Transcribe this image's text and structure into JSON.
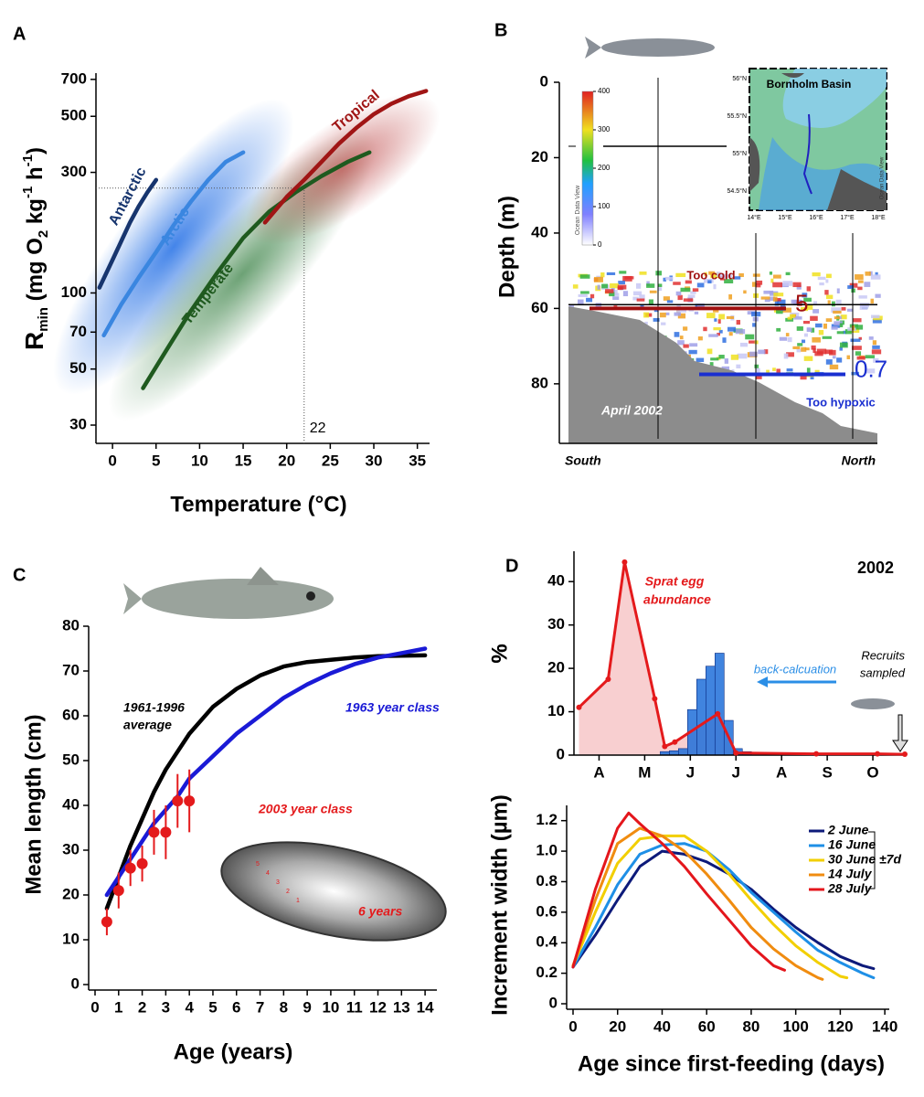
{
  "chart_data": [
    {
      "type": "line",
      "panel": "A",
      "xlabel": "Temperature (°C)",
      "ylabel": [
        "R",
        "min",
        " (mg O",
        "2",
        " kg",
        "-1",
        " h",
        "-1",
        ")"
      ],
      "log_y": true,
      "xlim": [
        -1.9,
        36.4
      ],
      "ylim": [
        25.4,
        741
      ],
      "xticks": [
        0,
        5,
        10,
        15,
        20,
        25,
        30,
        35
      ],
      "yticks": [
        30,
        50,
        70,
        100,
        300,
        500,
        700
      ],
      "series": [
        {
          "name": "Antarctic",
          "color": "#17356e",
          "x": [
            -1.5,
            0,
            1,
            2,
            3,
            4,
            5
          ],
          "values": [
            105,
            135,
            160,
            190,
            220,
            250,
            280
          ]
        },
        {
          "name": "Arctic",
          "color": "#3a86e0",
          "x": [
            -1,
            1,
            3,
            5,
            7,
            9,
            11,
            13,
            15
          ],
          "values": [
            68,
            90,
            115,
            145,
            185,
            230,
            280,
            330,
            360
          ]
        },
        {
          "name": "Temperate",
          "color": "#1f5a1f",
          "x": [
            3.5,
            6,
            9,
            12,
            15,
            18,
            21,
            24,
            27,
            29.5
          ],
          "values": [
            42,
            58,
            85,
            120,
            165,
            210,
            250,
            290,
            330,
            360
          ]
        },
        {
          "name": "Tropical",
          "color": "#a01515",
          "x": [
            17.5,
            20,
            22,
            24,
            26,
            28,
            30,
            32,
            34,
            36
          ],
          "values": [
            190,
            240,
            280,
            330,
            390,
            450,
            510,
            560,
            600,
            630
          ]
        }
      ],
      "reference": {
        "x": 22,
        "y": 260
      }
    },
    {
      "type": "echogram",
      "panel": "B",
      "ylabel": "Depth (m)",
      "ylim": [
        0,
        95.8
      ],
      "yticks": [
        0,
        20,
        40,
        60,
        80
      ],
      "left_label": "South",
      "right_label": "North",
      "date": "April 2002",
      "cold_label": "Too cold",
      "hypoxic_label": "Too hypoxic",
      "reference_depth": 59,
      "isolines": [
        {
          "value": 5,
          "depth": 60,
          "color": "#a01010"
        },
        {
          "value": 0.7,
          "depth": 77.5,
          "color": "#1a2fd0"
        }
      ],
      "colorbar": {
        "lim": [
          0,
          400
        ],
        "ticks": [
          0,
          100,
          200,
          300,
          400
        ],
        "credit": "Ocean Data View"
      },
      "inset": {
        "title": "Bornholm Basin",
        "lat_labels": [
          "56°N",
          "55.5°N",
          "55°N",
          "54.5°N"
        ],
        "lon_labels": [
          "14°E",
          "15°E",
          "16°E",
          "17°E",
          "18°E"
        ],
        "credit": "Ocean Data View"
      }
    },
    {
      "type": "line",
      "panel": "C",
      "xlabel": "Age (years)",
      "ylabel": "Mean length (cm)",
      "xlim": [
        0,
        14.5
      ],
      "ylim": [
        0,
        80
      ],
      "xticks": [
        0,
        1,
        2,
        3,
        4,
        5,
        6,
        7,
        8,
        9,
        10,
        11,
        12,
        13,
        14
      ],
      "yticks": [
        0,
        10,
        20,
        30,
        40,
        50,
        60,
        70,
        80
      ],
      "series": [
        {
          "label": [
            "1961-1996",
            "average"
          ],
          "color": "#000000",
          "x": [
            0.5,
            1,
            1.5,
            2,
            2.5,
            3,
            3.5,
            4,
            5,
            6,
            7,
            8,
            9,
            10,
            11,
            12,
            13,
            14
          ],
          "values": [
            17,
            24,
            31,
            37,
            43,
            48,
            52,
            56,
            62,
            66,
            69,
            71,
            72,
            72.5,
            73,
            73.3,
            73.4,
            73.5
          ]
        },
        {
          "label": [
            "1963 year class"
          ],
          "color": "#1a1ad6",
          "x": [
            0.5,
            1,
            1.5,
            2,
            2.5,
            3,
            3.5,
            4,
            5,
            6,
            7,
            8,
            9,
            10,
            11,
            12,
            13,
            14
          ],
          "values": [
            20,
            24,
            28,
            32,
            36,
            39,
            42,
            46,
            51,
            56,
            60,
            64,
            67,
            69.5,
            71.5,
            73,
            74,
            75
          ]
        },
        {
          "label": [
            "2003 year class"
          ],
          "color": "#e41a1c",
          "marker": "circle",
          "x": [
            0.5,
            1,
            1.5,
            2,
            2.5,
            3,
            3.5,
            4
          ],
          "values": [
            14,
            21,
            26,
            27,
            34,
            34,
            41,
            41
          ],
          "errors": [
            3,
            4,
            4,
            4,
            5,
            6,
            6,
            7
          ]
        }
      ],
      "otolith_label": "6 years",
      "otolith_rings": [
        "1",
        "2",
        "3",
        "4",
        "5"
      ]
    },
    {
      "type": "histogram",
      "panel": "D",
      "title": "2002",
      "ylabel": "%",
      "xlim": [
        0.45,
        7.7
      ],
      "ylim": [
        0,
        47
      ],
      "xticks": [
        {
          "value": 1,
          "label": "A"
        },
        {
          "value": 2,
          "label": "M"
        },
        {
          "value": 3,
          "label": "J"
        },
        {
          "value": 4,
          "label": "J"
        },
        {
          "value": 5,
          "label": "A"
        },
        {
          "value": 6,
          "label": "S"
        },
        {
          "value": 7,
          "label": "O"
        }
      ],
      "yticks": [
        0,
        10,
        20,
        30,
        40
      ],
      "bins": [
        2.34,
        2.54,
        2.74,
        2.94,
        3.14,
        3.34,
        3.54,
        3.74,
        3.94,
        4.14,
        4.34
      ],
      "counts": [
        0.8,
        1,
        1.5,
        10.5,
        17.5,
        20.5,
        23.5,
        8,
        1.5,
        0.8
      ],
      "color": "#1f6fd9",
      "series": [
        {
          "label": [
            "Sprat egg",
            "abundance"
          ],
          "color": "#e41a1c",
          "fill": "#f8cfd0",
          "x": [
            0.56,
            1.2,
            1.56,
            2.22,
            2.44,
            2.66,
            3.6,
            4.0,
            5.76,
            7.1,
            7.7
          ],
          "values": [
            11,
            17.5,
            44.5,
            13,
            2,
            3,
            9.5,
            0.5,
            0.3,
            0.3,
            0.2
          ]
        }
      ],
      "arrow_label": "back-calcuation",
      "recruits_label": [
        "Recruits",
        "sampled"
      ]
    },
    {
      "type": "line",
      "panel": "",
      "xlabel": "Age since first-feeding (days)",
      "ylabel": "Increment width (µm)",
      "xlim": [
        0,
        142
      ],
      "ylim": [
        0,
        1.3
      ],
      "xticks": [
        0,
        20,
        40,
        60,
        80,
        100,
        120,
        140
      ],
      "yticks": [
        0,
        0.2,
        0.4,
        0.6,
        0.8,
        {
          "value": 1,
          "label": "1.0"
        },
        1.2
      ],
      "legend": true,
      "legend_note": "±7d",
      "series": [
        {
          "name": "2 June",
          "color": "#0d1a7a",
          "x": [
            0,
            10,
            20,
            30,
            40,
            50,
            60,
            70,
            80,
            90,
            100,
            110,
            120,
            130,
            135
          ],
          "values": [
            0.24,
            0.45,
            0.68,
            0.9,
            1.0,
            0.98,
            0.93,
            0.85,
            0.75,
            0.62,
            0.5,
            0.4,
            0.31,
            0.25,
            0.23
          ]
        },
        {
          "name": "16 June",
          "color": "#1e8fe6",
          "x": [
            0,
            10,
            20,
            30,
            40,
            50,
            60,
            70,
            80,
            90,
            100,
            110,
            120,
            130,
            135
          ],
          "values": [
            0.24,
            0.5,
            0.78,
            0.98,
            1.04,
            1.05,
            1.0,
            0.88,
            0.73,
            0.6,
            0.47,
            0.35,
            0.27,
            0.2,
            0.17
          ]
        },
        {
          "name": "30 June",
          "color": "#f2cf00",
          "x": [
            0,
            10,
            20,
            30,
            40,
            50,
            60,
            70,
            80,
            90,
            100,
            110,
            120,
            123
          ],
          "values": [
            0.25,
            0.6,
            0.92,
            1.08,
            1.1,
            1.1,
            1.0,
            0.85,
            0.68,
            0.52,
            0.38,
            0.27,
            0.18,
            0.17
          ]
        },
        {
          "name": "14 July",
          "color": "#f08c10",
          "x": [
            0,
            10,
            20,
            30,
            40,
            50,
            60,
            70,
            80,
            90,
            100,
            110,
            112
          ],
          "values": [
            0.25,
            0.68,
            1.05,
            1.15,
            1.1,
            1.0,
            0.85,
            0.68,
            0.5,
            0.36,
            0.25,
            0.17,
            0.16
          ]
        },
        {
          "name": "28 July",
          "color": "#e4161c",
          "x": [
            0,
            10,
            20,
            25,
            30,
            40,
            50,
            60,
            70,
            80,
            90,
            95
          ],
          "values": [
            0.24,
            0.75,
            1.15,
            1.25,
            1.18,
            1.05,
            0.9,
            0.72,
            0.55,
            0.38,
            0.25,
            0.22
          ]
        }
      ]
    }
  ]
}
